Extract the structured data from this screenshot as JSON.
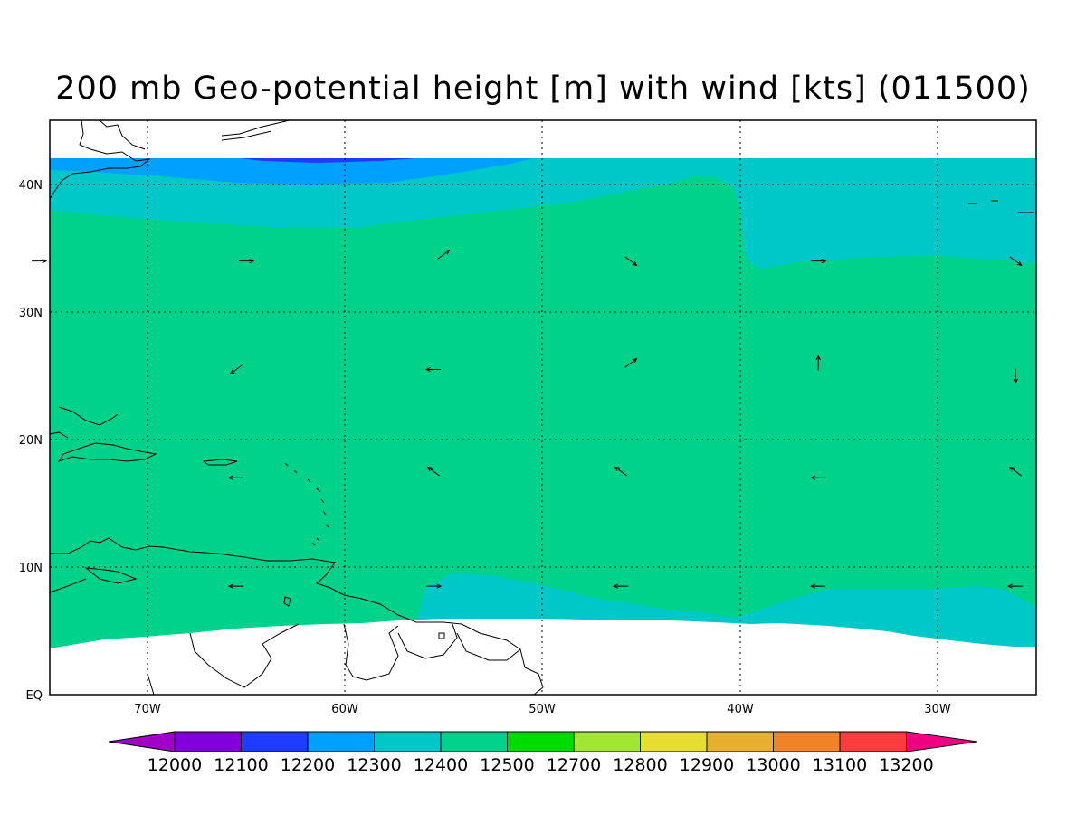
{
  "title": "200 mb Geo-potential height [m] with wind [kts] (011500)",
  "colors": {
    "c12200": "#1e3cff",
    "c12300": "#00a0ff",
    "c12400": "#00c8c8",
    "c12500": "#00d28c",
    "land_outline": "#000000",
    "grid": "#000000"
  },
  "lat_labels": [
    "40N",
    "30N",
    "20N",
    "10N",
    "EQ"
  ],
  "lon_labels": [
    "70W",
    "60W",
    "50W",
    "40W",
    "30W"
  ],
  "colorbar": {
    "colors": [
      "#a000c8",
      "#8200dc",
      "#1e3cff",
      "#00a0ff",
      "#00c8c8",
      "#00d28c",
      "#00dc00",
      "#a0e632",
      "#e6dc32",
      "#e6af2d",
      "#f08228",
      "#fa3c3c",
      "#f00082"
    ],
    "labels": [
      "12000",
      "12100",
      "12200",
      "12300",
      "12400",
      "12500",
      "12700",
      "12800",
      "12900",
      "13000",
      "13100",
      "13200"
    ]
  },
  "wind_arrows": [
    {
      "lon": -75.5,
      "lat": 34.0,
      "dir": "E"
    },
    {
      "lon": -65.0,
      "lat": 34.0,
      "dir": "E"
    },
    {
      "lon": -55.0,
      "lat": 34.5,
      "dir": "NE"
    },
    {
      "lon": -45.5,
      "lat": 34.0,
      "dir": "SE"
    },
    {
      "lon": -36.0,
      "lat": 34.0,
      "dir": "E"
    },
    {
      "lon": -26.0,
      "lat": 34.0,
      "dir": "SE"
    },
    {
      "lon": -65.5,
      "lat": 25.5,
      "dir": "SW"
    },
    {
      "lon": -55.5,
      "lat": 25.5,
      "dir": "W"
    },
    {
      "lon": -45.5,
      "lat": 26.0,
      "dir": "NE"
    },
    {
      "lon": -36.0,
      "lat": 26.0,
      "dir": "N"
    },
    {
      "lon": -26.0,
      "lat": 25.0,
      "dir": "S"
    },
    {
      "lon": -65.5,
      "lat": 17.0,
      "dir": "W"
    },
    {
      "lon": -55.5,
      "lat": 17.5,
      "dir": "NW"
    },
    {
      "lon": -46.0,
      "lat": 17.5,
      "dir": "NW"
    },
    {
      "lon": -36.0,
      "lat": 17.0,
      "dir": "W"
    },
    {
      "lon": -26.0,
      "lat": 17.5,
      "dir": "NW"
    },
    {
      "lon": -65.5,
      "lat": 8.5,
      "dir": "W"
    },
    {
      "lon": -55.5,
      "lat": 8.5,
      "dir": "E"
    },
    {
      "lon": -46.0,
      "lat": 8.5,
      "dir": "W"
    },
    {
      "lon": -36.0,
      "lat": 8.5,
      "dir": "W"
    },
    {
      "lon": -26.0,
      "lat": 8.5,
      "dir": "W"
    }
  ]
}
